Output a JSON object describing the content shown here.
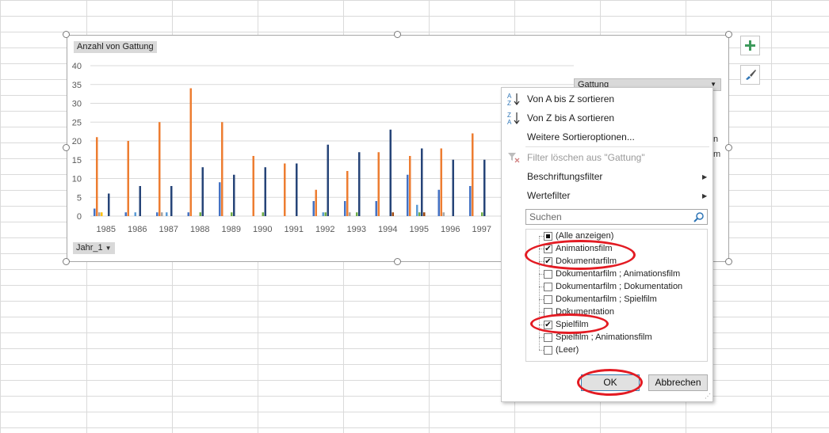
{
  "chart": {
    "value_field_label": "Anzahl von Gattung",
    "axis_field_label": "Jahr_1",
    "legend_field_label": "Gattung"
  },
  "chart_data": {
    "type": "bar",
    "ylim": [
      0,
      40
    ],
    "yticks": [
      0,
      5,
      10,
      15,
      20,
      25,
      30,
      35,
      40
    ],
    "categories": [
      "1985",
      "1986",
      "1987",
      "1988",
      "1989",
      "1990",
      "1991",
      "1992",
      "1993",
      "1994",
      "1995",
      "1996",
      "1997"
    ],
    "grid": true,
    "series": [
      {
        "color": "#4472c4",
        "values": [
          2,
          1,
          1,
          1,
          9,
          0,
          0,
          4,
          4,
          4,
          11,
          7,
          8
        ]
      },
      {
        "color": "#ed7d31",
        "values": [
          21,
          20,
          25,
          34,
          25,
          16,
          14,
          7,
          12,
          17,
          16,
          18,
          22
        ]
      },
      {
        "color": "#a5a5a5",
        "values": [
          1,
          0,
          1,
          0,
          0,
          0,
          0,
          0,
          1,
          0,
          0,
          1,
          0
        ]
      },
      {
        "color": "#ffc000",
        "values": [
          1,
          0,
          0,
          0,
          0,
          0,
          0,
          0,
          0,
          0,
          0,
          0,
          0
        ]
      },
      {
        "color": "#5b9bd5",
        "values": [
          0,
          1,
          1,
          0,
          0,
          0,
          0,
          1,
          0,
          0,
          3,
          0,
          0
        ]
      },
      {
        "color": "#70ad47",
        "values": [
          0,
          0,
          0,
          1,
          1,
          1,
          0,
          1,
          1,
          0,
          1,
          0,
          1
        ]
      },
      {
        "color": "#264478",
        "values": [
          6,
          8,
          8,
          13,
          11,
          13,
          14,
          19,
          17,
          23,
          18,
          15,
          15
        ]
      },
      {
        "color": "#9e480e",
        "values": [
          0,
          0,
          0,
          0,
          0,
          0,
          0,
          0,
          0,
          1,
          1,
          0,
          0
        ]
      }
    ]
  },
  "menu": {
    "sort_az": "Von A bis Z sortieren",
    "sort_za": "Von Z bis A sortieren",
    "more_sort": "Weitere Sortieroptionen...",
    "clear_filter": "Filter löschen aus \"Gattung\"",
    "label_filter": "Beschriftungsfilter",
    "value_filter": "Wertefilter",
    "search_placeholder": "Suchen",
    "items": [
      {
        "label": "(Alle anzeigen)",
        "state": "partial"
      },
      {
        "label": "Animationsfilm",
        "state": "checked"
      },
      {
        "label": "Dokumentarfilm",
        "state": "checked"
      },
      {
        "label": "Dokumentarfilm ; Animationsfilm",
        "state": "unchecked"
      },
      {
        "label": "Dokumentarfilm ; Dokumentation",
        "state": "unchecked"
      },
      {
        "label": "Dokumentarfilm ; Spielfilm",
        "state": "unchecked"
      },
      {
        "label": "Dokumentation",
        "state": "unchecked"
      },
      {
        "label": "Spielfilm",
        "state": "checked"
      },
      {
        "label": "Spielfilm ; Animationsfilm",
        "state": "unchecked"
      },
      {
        "label": "(Leer)",
        "state": "unchecked"
      }
    ],
    "ok_label": "OK",
    "cancel_label": "Abbrechen"
  },
  "legend_clipped": {
    "a": "n",
    "b": "m"
  },
  "colors": {
    "highlight": "#e31b23"
  }
}
